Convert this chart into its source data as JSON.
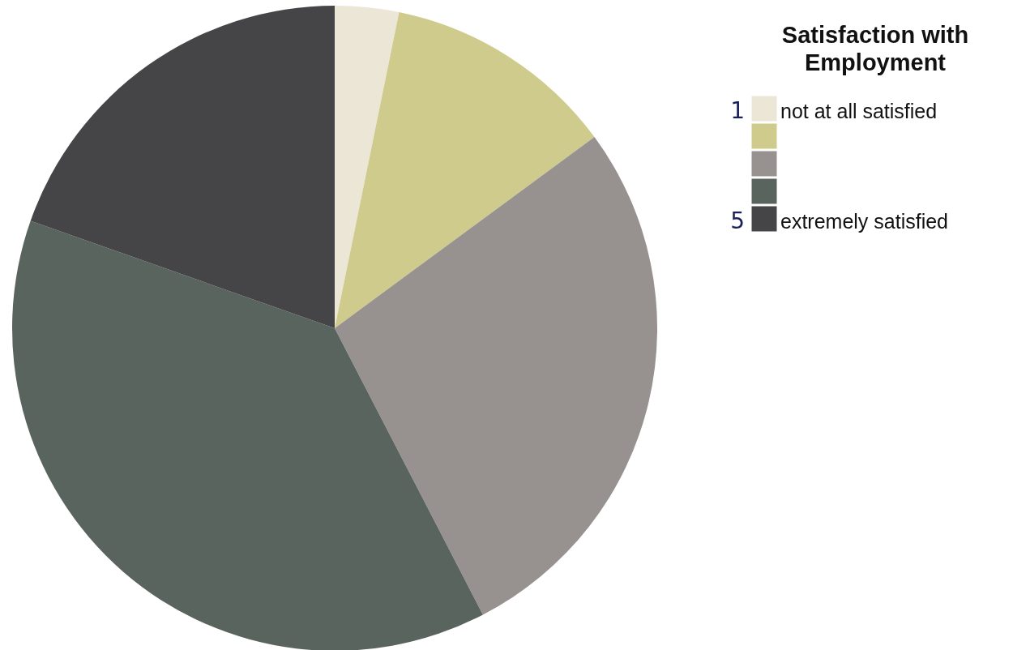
{
  "chart_data": {
    "type": "pie",
    "legend_title": "Satisfaction with Employment",
    "categories": [
      "not at all satisfied",
      null,
      null,
      null,
      "extremely satisfied"
    ],
    "values": [
      3.2,
      11.7,
      27.5,
      38.0,
      19.6
    ],
    "colors": [
      "#ece6d6",
      "#cfcb8d",
      "#979190",
      "#5a645e",
      "#454547"
    ],
    "legend": "top right",
    "annotations": [
      "1",
      "5"
    ]
  }
}
